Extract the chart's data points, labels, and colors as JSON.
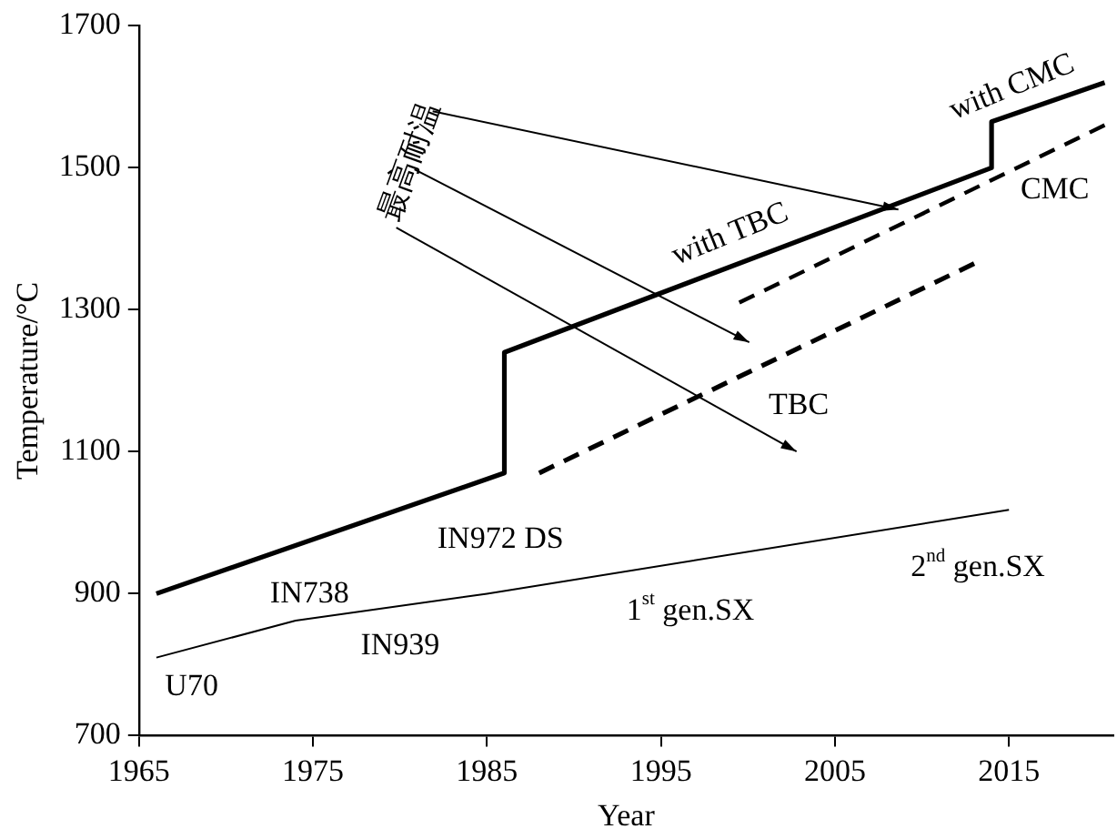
{
  "chart_data": {
    "type": "line",
    "xlabel": "Year",
    "ylabel": "Temperature/°C",
    "xlim": [
      1965,
      2021
    ],
    "xticks": [
      1965,
      1975,
      1985,
      1995,
      2005,
      2015
    ],
    "ylim": [
      700,
      1700
    ],
    "yticks": [
      700,
      900,
      1100,
      1300,
      1500,
      1700
    ],
    "grid": false,
    "legend": false,
    "marker": "none",
    "series": [
      {
        "color": "#000000",
        "line_style": "solid",
        "x": [
          1966,
          1974,
          1985,
          2015
        ],
        "values": [
          810,
          862,
          900,
          1018
        ]
      },
      {
        "color": "#000000",
        "line_style": "solid",
        "x": [
          1966,
          1986,
          1986,
          2014,
          2014,
          2020.5
        ],
        "values": [
          900,
          1070,
          1240,
          1500,
          1565,
          1620
        ]
      },
      {
        "color": "#000000",
        "line_style": "dashed",
        "x": [
          1988,
          2013
        ],
        "values": [
          1070,
          1365
        ]
      },
      {
        "color": "#000000",
        "line_style": "dashed",
        "x": [
          1999.5,
          2020.5
        ],
        "values": [
          1310,
          1560
        ]
      }
    ],
    "annotations": [
      "最高耐温",
      "with TBC",
      "with CMC",
      "CMC",
      "TBC",
      "IN972 DS",
      "IN738",
      "IN939",
      "U70",
      "1$^{st}$ gen.SX",
      "2$^{nd}$ gen.SX"
    ]
  }
}
